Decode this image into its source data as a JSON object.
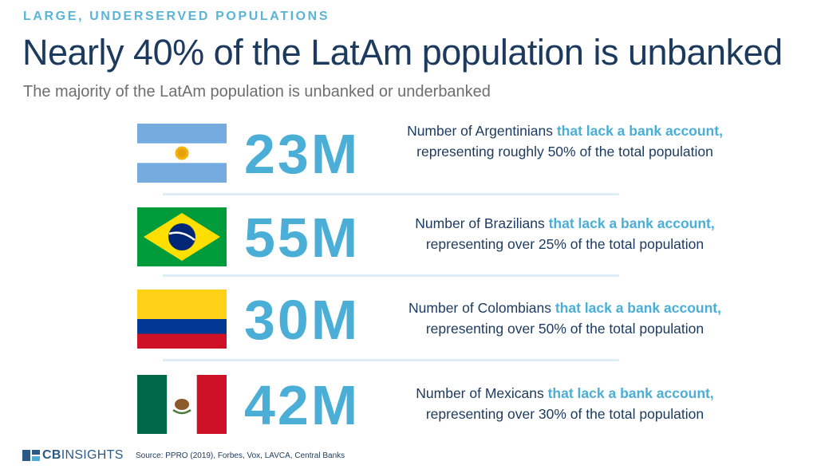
{
  "header": {
    "eyebrow": "LARGE, UNDERSERVED POPULATIONS",
    "title": "Nearly 40% of the LatAm population is unbanked",
    "subtitle": "The majority of the LatAm population is unbanked or underbanked"
  },
  "rows": [
    {
      "country": "Argentina",
      "flag_icon": "argentina-flag-icon",
      "figure": "23M",
      "desc_pre": "Number of Argentinians ",
      "desc_highlight": "that lack a bank account,",
      "desc_post": " representing roughly 50% of the total population"
    },
    {
      "country": "Brazil",
      "flag_icon": "brazil-flag-icon",
      "figure": "55M",
      "desc_pre": "Number of Brazilians ",
      "desc_highlight": "that lack a bank account,",
      "desc_post": " representing over 25% of the total population"
    },
    {
      "country": "Colombia",
      "flag_icon": "colombia-flag-icon",
      "figure": "30M",
      "desc_pre": "Number of Colombians ",
      "desc_highlight": "that lack a bank account,",
      "desc_post": " representing over 50% of the total population"
    },
    {
      "country": "Mexico",
      "flag_icon": "mexico-flag-icon",
      "figure": "42M",
      "desc_pre": "Number of Mexicans ",
      "desc_highlight": "that lack a bank account,",
      "desc_post": " representing over 30% of the total population"
    }
  ],
  "footer": {
    "logo_bold": "CB",
    "logo_rest": "INSIGHTS",
    "source": "Source: PPRO (2019), Forbes, Vox, LAVCA, Central Banks"
  },
  "colors": {
    "accent": "#4aaed6",
    "navy": "#1c3a5e",
    "subtitle_gray": "#6e6e6e"
  }
}
